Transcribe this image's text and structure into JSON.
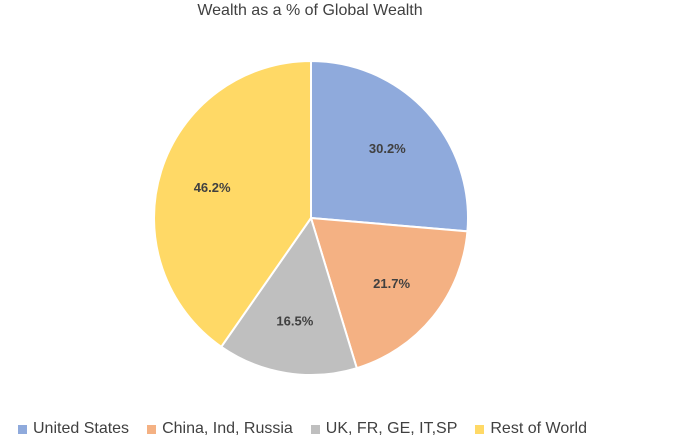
{
  "chart_data": {
    "type": "pie",
    "title": "Wealth as a % of Global Wealth",
    "categories": [
      "United States",
      "China, Ind, Russia",
      "UK, FR, GE, IT,SP",
      "Rest of World"
    ],
    "values": [
      30.2,
      21.7,
      16.5,
      46.2
    ],
    "data_labels": [
      "30.2%",
      "21.7%",
      "16.5%",
      "46.2%"
    ],
    "colors": [
      "#8faadc",
      "#f4b183",
      "#bfbfbf",
      "#ffd966"
    ],
    "legend_position": "bottom"
  }
}
